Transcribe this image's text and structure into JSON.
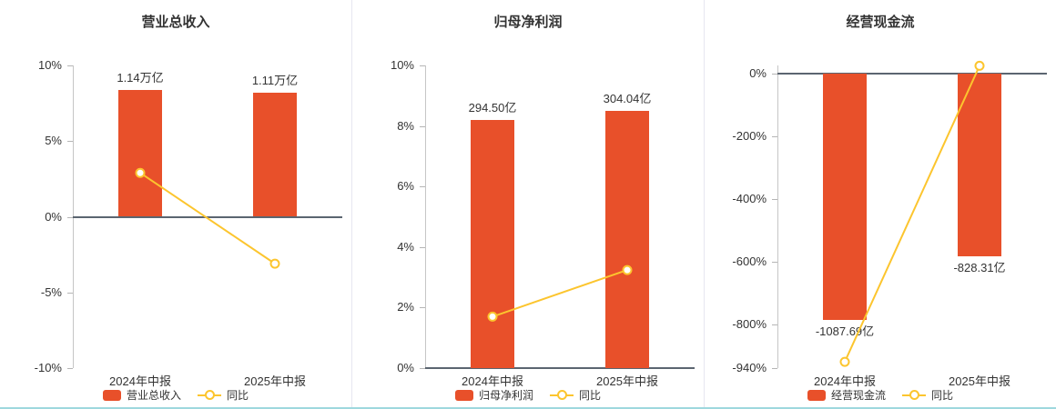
{
  "page": {
    "background": "#ffffff",
    "divider_color": "#e6e6f0",
    "bottom_rule_color": "#9ed8de"
  },
  "style": {
    "bar_color": "#e8502a",
    "line_color": "#fcc52e",
    "text_color": "#333333",
    "axis_color": "#c6c6c6",
    "zero_line_color": "#5b6570"
  },
  "chart_data": [
    {
      "type": "bar",
      "title": "营业总收入",
      "categories": [
        "2024年中报",
        "2025年中报"
      ],
      "ylim": [
        -10,
        10
      ],
      "grid": false,
      "legend_position": "bottom",
      "yticks": [
        {
          "value": 10,
          "label": "10%"
        },
        {
          "value": 5,
          "label": "5%"
        },
        {
          "value": 0,
          "label": "0%"
        },
        {
          "value": -5,
          "label": "-5%"
        },
        {
          "value": -10,
          "label": "-10%"
        }
      ],
      "bar_series": {
        "name": "营业总收入",
        "display_values": [
          "1.14万亿",
          "1.11万亿"
        ],
        "plotted_values": [
          8.4,
          8.2
        ]
      },
      "line_series": {
        "name": "同比",
        "unit": "%",
        "values": [
          2.9,
          -3.1
        ]
      }
    },
    {
      "type": "bar",
      "title": "归母净利润",
      "categories": [
        "2024年中报",
        "2025年中报"
      ],
      "ylim": [
        0,
        10
      ],
      "grid": false,
      "legend_position": "bottom",
      "yticks": [
        {
          "value": 10,
          "label": "10%"
        },
        {
          "value": 8,
          "label": "8%"
        },
        {
          "value": 6,
          "label": "6%"
        },
        {
          "value": 4,
          "label": "4%"
        },
        {
          "value": 2,
          "label": "2%"
        },
        {
          "value": 0,
          "label": "0%"
        }
      ],
      "bar_series": {
        "name": "归母净利润",
        "display_values": [
          "294.50亿",
          "304.04亿"
        ],
        "plotted_values": [
          8.2,
          8.5
        ]
      },
      "line_series": {
        "name": "同比",
        "unit": "%",
        "values": [
          1.7,
          3.24
        ]
      }
    },
    {
      "type": "bar",
      "title": "经营现金流",
      "categories": [
        "2024年中报",
        "2025年中报"
      ],
      "ylim": [
        -940,
        25
      ],
      "grid": false,
      "legend_position": "bottom",
      "yticks": [
        {
          "value": 0,
          "label": "0%"
        },
        {
          "value": -200,
          "label": "-200%"
        },
        {
          "value": -400,
          "label": "-400%"
        },
        {
          "value": -600,
          "label": "-600%"
        },
        {
          "value": -800,
          "label": "-800%"
        },
        {
          "value": -940,
          "label": "-940%"
        }
      ],
      "bar_series": {
        "name": "经营现金流",
        "display_values": [
          "-1087.69亿",
          "-828.31亿"
        ],
        "plotted_values": [
          -787,
          -584
        ]
      },
      "line_series": {
        "name": "同比",
        "unit": "%",
        "values": [
          -920,
          23.8
        ]
      }
    }
  ]
}
